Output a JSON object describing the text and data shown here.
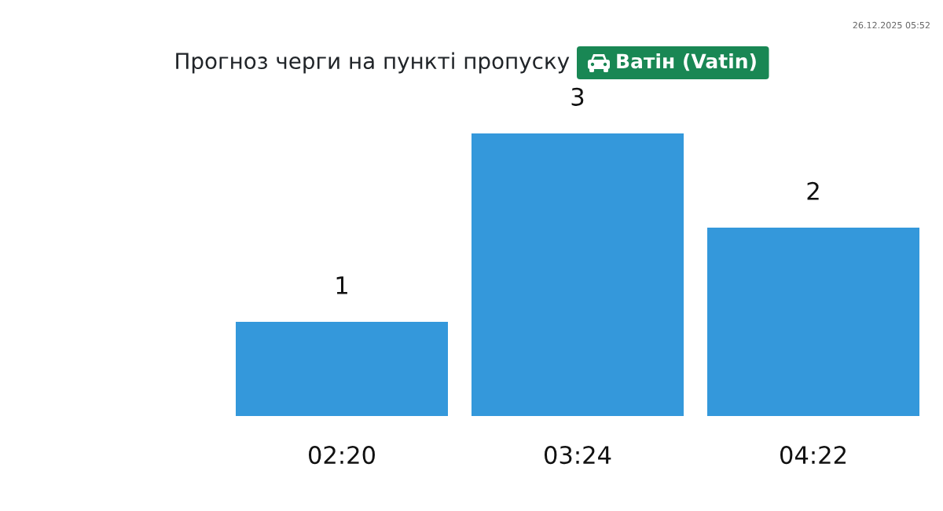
{
  "chart_data": {
    "type": "bar",
    "title": "Прогноз черги на пункті пропуску",
    "subtitle": "Ватін (Vatin)",
    "categories": [
      "02:20",
      "03:24",
      "04:22"
    ],
    "values": [
      1,
      3,
      2
    ],
    "color": "#3498db",
    "data_labels": true,
    "annotations": [
      "26.12.2025 05:52"
    ]
  }
}
